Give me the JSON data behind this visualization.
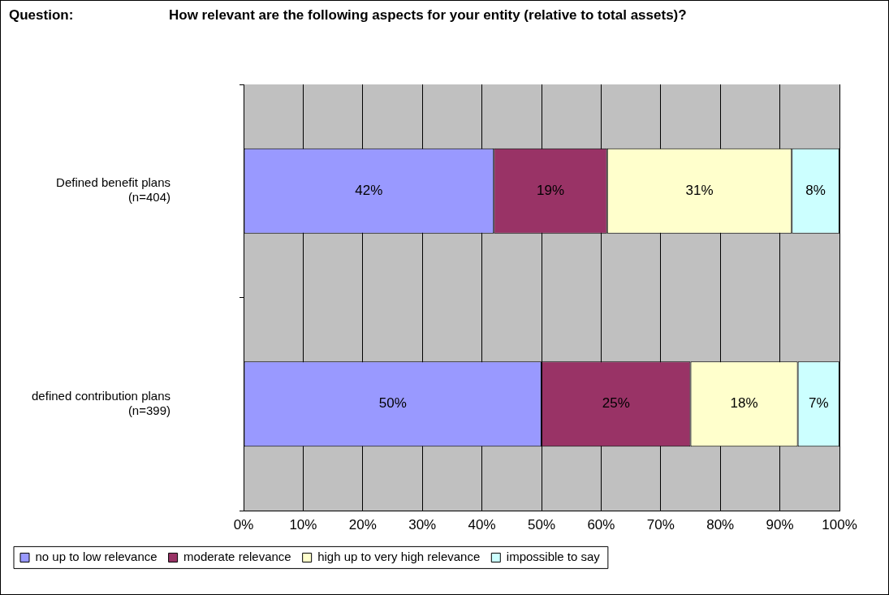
{
  "chart_data": {
    "type": "bar",
    "orientation": "horizontal",
    "stacked": true,
    "title": "How relevant are the following aspects for your entity (relative to total assets)?",
    "annotations": [
      "Question:"
    ],
    "categories": [
      "Defined benefit plans (n=404)",
      "defined contribution plans (n=399)"
    ],
    "series": [
      {
        "name": "no up to low relevance",
        "color": "#9999ff",
        "values": [
          42,
          50
        ],
        "value_labels": [
          "42%",
          "50%"
        ]
      },
      {
        "name": "moderate relevance",
        "color": "#993366",
        "values": [
          19,
          25
        ],
        "value_labels": [
          "19%",
          "25%"
        ]
      },
      {
        "name": "high up to very high relevance",
        "color": "#ffffcc",
        "values": [
          31,
          18
        ],
        "value_labels": [
          "31%",
          "18%"
        ]
      },
      {
        "name": "impossible to say",
        "color": "#ccffff",
        "values": [
          8,
          7
        ],
        "value_labels": [
          "8%",
          "7%"
        ]
      }
    ],
    "xlim": [
      0,
      100
    ],
    "xticks": [
      {
        "value": 0,
        "label": "0%"
      },
      {
        "value": 10,
        "label": "10%"
      },
      {
        "value": 20,
        "label": "20%"
      },
      {
        "value": 30,
        "label": "30%"
      },
      {
        "value": 40,
        "label": "40%"
      },
      {
        "value": 50,
        "label": "50%"
      },
      {
        "value": 60,
        "label": "60%"
      },
      {
        "value": 70,
        "label": "70%"
      },
      {
        "value": 80,
        "label": "80%"
      },
      {
        "value": 90,
        "label": "90%"
      },
      {
        "value": 100,
        "label": "100%"
      }
    ],
    "grid": "x",
    "legend": "bottom left"
  }
}
